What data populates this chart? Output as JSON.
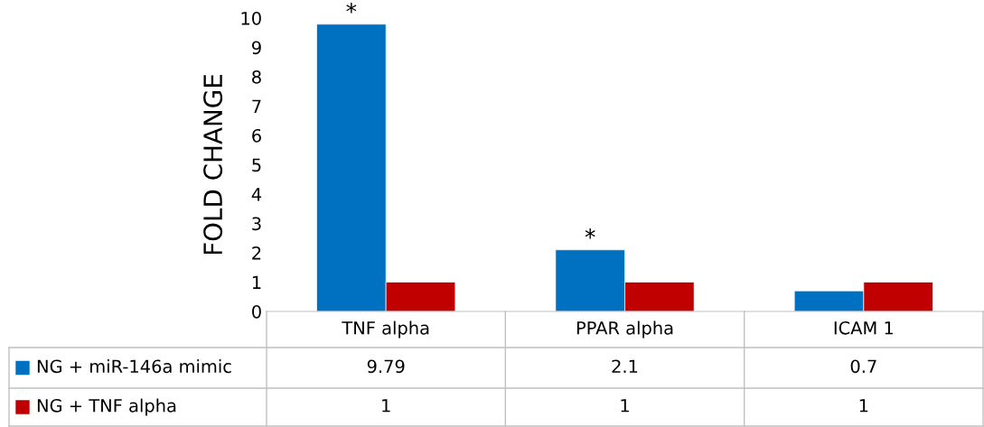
{
  "chart_data": {
    "type": "bar",
    "ylabel": "FOLD CHANGE",
    "categories": [
      "TNF alpha",
      "PPAR alpha",
      "ICAM 1"
    ],
    "series": [
      {
        "name": "NG + miR-146a mimic",
        "color": "#0070c0",
        "values": [
          9.79,
          2.1,
          0.7
        ]
      },
      {
        "name": "NG + TNF alpha",
        "color": "#c00000",
        "values": [
          1,
          1,
          1
        ]
      }
    ],
    "ylim": [
      0,
      10
    ],
    "yticks": [
      0,
      1,
      2,
      3,
      4,
      5,
      6,
      7,
      8,
      9,
      10
    ],
    "grid": false,
    "data_labels": true,
    "legend": "bottom left",
    "annotations": [
      {
        "text": "*",
        "x": "TNF alpha",
        "y": 9.79
      },
      {
        "text": "*",
        "x": "PPAR alpha",
        "y": 2.1
      }
    ]
  }
}
